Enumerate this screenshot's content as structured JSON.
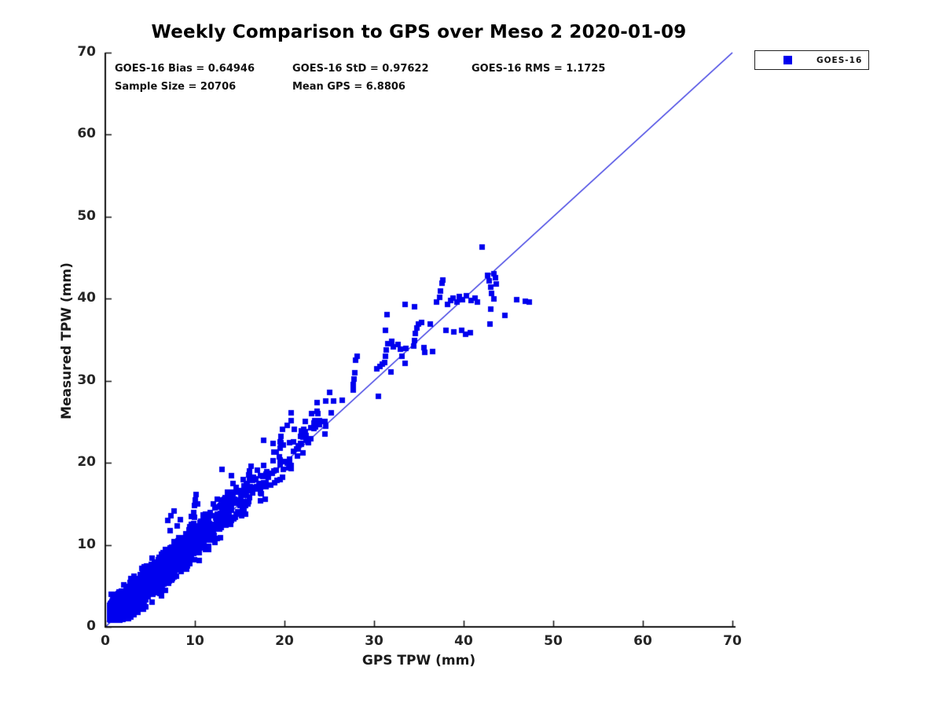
{
  "chart_data": {
    "type": "scatter",
    "title": "Weekly Comparison to GPS over Meso 2 2020-01-09",
    "xlabel": "GPS TPW (mm)",
    "ylabel": "Measured TPW (mm)",
    "xlim": [
      0,
      70
    ],
    "ylim": [
      0,
      70
    ],
    "xticks": [
      0,
      10,
      20,
      30,
      40,
      50,
      60,
      70
    ],
    "yticks": [
      0,
      10,
      20,
      30,
      40,
      50,
      60,
      70
    ],
    "grid": false,
    "legend_position": "outside-top-right",
    "annotations": {
      "bias": "GOES-16 Bias = 0.64946",
      "std": "GOES-16 StD = 0.97622",
      "rms": "GOES-16 RMS = 1.1725",
      "sample": "Sample Size = 20706",
      "mean": "Mean GPS = 6.8806"
    },
    "reference_line": {
      "from": [
        0,
        0
      ],
      "to": [
        70,
        70
      ],
      "color": "#2020dd",
      "width": 1.2
    },
    "series": [
      {
        "name": "GOES-16",
        "marker": "filled-square",
        "color": "#0000ee",
        "marker_px": 7,
        "sample_size": 20706,
        "bias": 0.64946,
        "std": 0.97622,
        "rms": 1.1725,
        "mean_gps": 6.8806,
        "x_range_observed": [
          0.4,
          47.5
        ],
        "dense_cloud": {
          "description": "approximately 20k points hugging the 1:1 line, very dense for GPS TPW < 20 mm, mean GPS 6.88 mm, bias +0.65 mm, std ~0.98 mm (spread grows slightly with TPW)",
          "n_render": 3000,
          "seed": 42,
          "x_min": 0.4,
          "x_max": 26,
          "x_exp_scale": 4.6,
          "bias": 0.65,
          "noise_std_base": 0.75,
          "noise_std_slope": 0.035,
          "y_min": 0.9
        },
        "sparse_points": [
          [
            6.9,
            13.0
          ],
          [
            7.3,
            13.6
          ],
          [
            7.6,
            14.2
          ],
          [
            8.0,
            12.4
          ],
          [
            8.3,
            13.1
          ],
          [
            9.6,
            13.5
          ],
          [
            9.8,
            14.0
          ],
          [
            9.9,
            14.8
          ],
          [
            10.0,
            15.5
          ],
          [
            10.1,
            16.2
          ],
          [
            10.3,
            15.0
          ],
          [
            10.6,
            9.7
          ],
          [
            11.5,
            9.9
          ],
          [
            12.2,
            10.3
          ],
          [
            13.0,
            19.2
          ],
          [
            17.6,
            22.8
          ],
          [
            18.7,
            20.3
          ],
          [
            18.8,
            21.4
          ],
          [
            18.7,
            22.4
          ],
          [
            19.5,
            21.8
          ],
          [
            19.5,
            22.6
          ],
          [
            19.6,
            23.3
          ],
          [
            19.7,
            24.1
          ],
          [
            20.3,
            24.6
          ],
          [
            20.7,
            25.2
          ],
          [
            20.7,
            26.1
          ],
          [
            21.4,
            20.9
          ],
          [
            21.5,
            21.7
          ],
          [
            21.8,
            22.3
          ],
          [
            22.0,
            23.2
          ],
          [
            22.1,
            24.1
          ],
          [
            22.9,
            24.3
          ],
          [
            23.6,
            26.3
          ],
          [
            23.6,
            27.4
          ],
          [
            23.8,
            25.0
          ],
          [
            24.5,
            23.6
          ],
          [
            24.6,
            27.6
          ],
          [
            25.0,
            28.6
          ],
          [
            25.2,
            26.1
          ],
          [
            26.4,
            27.7
          ],
          [
            27.6,
            28.9
          ],
          [
            27.6,
            29.6
          ],
          [
            27.7,
            30.3
          ],
          [
            27.8,
            31.0
          ],
          [
            27.9,
            32.6
          ],
          [
            28.1,
            33.0
          ],
          [
            30.3,
            31.5
          ],
          [
            30.6,
            31.8
          ],
          [
            30.9,
            32.1
          ],
          [
            30.4,
            28.2
          ],
          [
            31.1,
            32.3
          ],
          [
            31.2,
            33.0
          ],
          [
            31.3,
            33.8
          ],
          [
            31.5,
            34.6
          ],
          [
            31.9,
            34.9
          ],
          [
            32.1,
            34.2
          ],
          [
            31.8,
            31.1
          ],
          [
            31.2,
            36.2
          ],
          [
            31.4,
            38.1
          ],
          [
            32.6,
            34.5
          ],
          [
            32.9,
            33.9
          ],
          [
            33.1,
            33.0
          ],
          [
            33.4,
            32.2
          ],
          [
            33.5,
            34.0
          ],
          [
            33.4,
            39.4
          ],
          [
            34.5,
            39.1
          ],
          [
            34.4,
            34.3
          ],
          [
            34.5,
            35.0
          ],
          [
            34.6,
            35.8
          ],
          [
            34.7,
            36.5
          ],
          [
            34.9,
            37.0
          ],
          [
            35.3,
            37.2
          ],
          [
            35.5,
            34.1
          ],
          [
            35.6,
            33.5
          ],
          [
            36.2,
            37.0
          ],
          [
            36.5,
            33.6
          ],
          [
            36.9,
            39.6
          ],
          [
            37.3,
            40.2
          ],
          [
            37.4,
            41.0
          ],
          [
            37.5,
            41.9
          ],
          [
            37.6,
            42.3
          ],
          [
            38.0,
            36.2
          ],
          [
            38.9,
            36.0
          ],
          [
            39.7,
            36.2
          ],
          [
            40.2,
            35.7
          ],
          [
            40.7,
            35.9
          ],
          [
            38.2,
            39.4
          ],
          [
            38.5,
            39.8
          ],
          [
            38.8,
            40.1
          ],
          [
            39.2,
            39.6
          ],
          [
            39.5,
            40.3
          ],
          [
            39.8,
            39.9
          ],
          [
            40.3,
            40.4
          ],
          [
            40.8,
            39.8
          ],
          [
            41.2,
            40.1
          ],
          [
            41.5,
            39.6
          ],
          [
            42.0,
            46.3
          ],
          [
            42.6,
            42.9
          ],
          [
            42.8,
            42.2
          ],
          [
            43.0,
            41.5
          ],
          [
            43.1,
            40.7
          ],
          [
            43.3,
            40.0
          ],
          [
            43.0,
            38.8
          ],
          [
            42.9,
            37.0
          ],
          [
            43.5,
            42.6
          ],
          [
            43.6,
            41.8
          ],
          [
            43.3,
            43.1
          ],
          [
            44.6,
            38.0
          ],
          [
            45.9,
            39.9
          ],
          [
            46.8,
            39.7
          ],
          [
            47.3,
            39.6
          ]
        ]
      }
    ]
  },
  "legend": {
    "entries": [
      {
        "label": "GOES-16",
        "marker_color": "#0000ee"
      }
    ]
  }
}
